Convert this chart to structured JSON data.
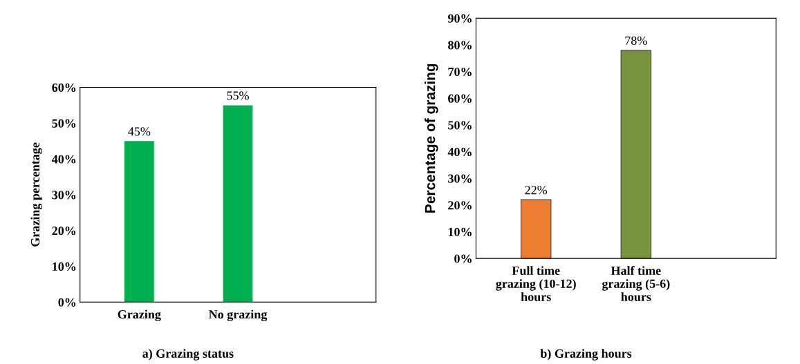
{
  "chart_data": [
    {
      "type": "bar",
      "title": "a) Grazing status",
      "ylabel": "Grazing percentage",
      "categories": [
        "Grazing",
        "No grazing"
      ],
      "values": [
        45,
        55
      ],
      "color": "#00b050",
      "data_labels": true,
      "value_labels": [
        "45%",
        "55%"
      ],
      "ylim": [
        0,
        60
      ],
      "yticks": [
        {
          "value": 0,
          "label": "0%"
        },
        {
          "value": 10,
          "label": "10%"
        },
        {
          "value": 20,
          "label": "20%"
        },
        {
          "value": 30,
          "label": "30%"
        },
        {
          "value": 40,
          "label": "40%"
        },
        {
          "value": 50,
          "label": "50%"
        },
        {
          "value": 60,
          "label": "60%"
        }
      ],
      "grid": false,
      "legend": false
    },
    {
      "type": "bar",
      "title": "b) Grazing hours",
      "ylabel": "Percentage of grazing",
      "categories": [
        "Full time\ngrazing (10-12)\nhours",
        "Half time\ngrazing (5-6)\nhours"
      ],
      "values": [
        22,
        78
      ],
      "colors": [
        "#ed7d31",
        "#77933c"
      ],
      "data_labels": true,
      "value_labels": [
        "22%",
        "78%"
      ],
      "ylim": [
        0,
        90
      ],
      "yticks": [
        {
          "value": 0,
          "label": "0%"
        },
        {
          "value": 10,
          "label": "10%"
        },
        {
          "value": 20,
          "label": "20%"
        },
        {
          "value": 30,
          "label": "30%"
        },
        {
          "value": 40,
          "label": "40%"
        },
        {
          "value": 50,
          "label": "50%"
        },
        {
          "value": 60,
          "label": "60%"
        },
        {
          "value": 70,
          "label": "70%"
        },
        {
          "value": 80,
          "label": "80%"
        },
        {
          "value": 90,
          "label": "90%"
        }
      ],
      "grid": false,
      "legend": false
    }
  ]
}
